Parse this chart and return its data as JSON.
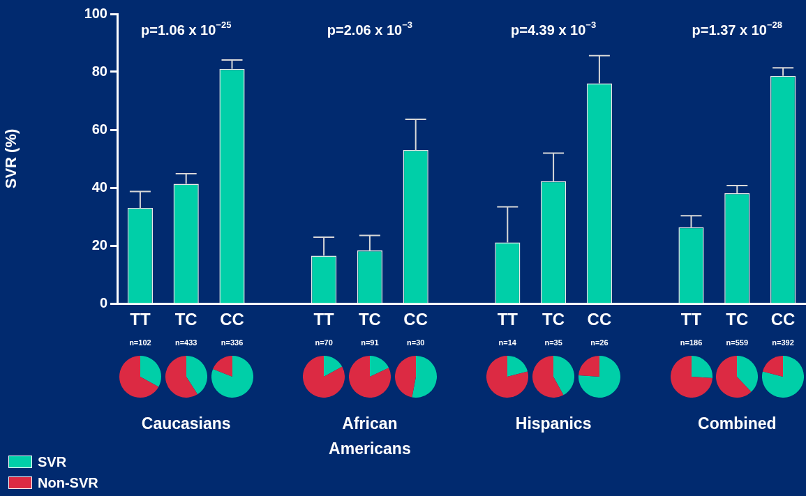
{
  "chart_data": [
    {
      "type": "bar",
      "ylabel": "SVR (%)",
      "categories": [
        "TT",
        "TC",
        "CC",
        null,
        "TT",
        "TC",
        "CC",
        null,
        "TT",
        "TC",
        "CC",
        null,
        "TT",
        "TC",
        "CC"
      ],
      "values": [
        33,
        41.3,
        81,
        null,
        16.5,
        18.3,
        53,
        null,
        21.1,
        42.2,
        76,
        null,
        26.3,
        38.1,
        78.6
      ],
      "errors": [
        [
          33,
          38.7
        ],
        [
          41.3,
          44.8
        ],
        [
          81,
          84.1
        ],
        null,
        [
          16.5,
          22.9
        ],
        [
          18.3,
          23.5
        ],
        [
          53,
          63.6
        ],
        null,
        [
          21.1,
          33.4
        ],
        [
          42.2,
          51.9
        ],
        [
          76,
          85.6
        ],
        null,
        [
          26.3,
          30.3
        ],
        [
          38.1,
          40.7
        ],
        [
          78.6,
          81.4
        ]
      ],
      "color": "#00cfa8",
      "ylim": [
        0,
        100
      ],
      "yticks": [
        0,
        20,
        40,
        60,
        80,
        100
      ],
      "grid": false,
      "annotations": [
        "p=1.06 x 10$^{−25}$",
        "p=2.06 x 10$^{−3}$",
        "p=4.39 x 10$^{−3}$",
        "p=1.37 x 10$^{−28}$",
        "n=102",
        "n=433",
        "n=336",
        "n=70",
        "n=91",
        "n=30",
        "n=14",
        "n=35",
        "n=26",
        "n=186",
        "n=559",
        "n=392",
        "Caucasians",
        "African Americans",
        "Hispanics",
        "Combined"
      ]
    },
    {
      "type": "pie",
      "categories": [
        "SVR",
        "Non-SVR"
      ],
      "values": [
        33,
        67
      ],
      "colors": [
        "#00cfa8",
        "#dc2a43"
      ],
      "legend": "bottom left"
    },
    {
      "type": "pie",
      "categories": [
        null,
        null
      ],
      "values": [
        41,
        59
      ],
      "colors": [
        "#00cfa8",
        "#dc2a43"
      ]
    },
    {
      "type": "pie",
      "categories": [
        null,
        null
      ],
      "values": [
        81,
        19
      ],
      "colors": [
        "#00cfa8",
        "#dc2a43"
      ]
    },
    {
      "type": "pie",
      "categories": [
        null,
        null
      ],
      "values": [
        17,
        83
      ],
      "colors": [
        "#00cfa8",
        "#dc2a43"
      ]
    },
    {
      "type": "pie",
      "categories": [
        null,
        null
      ],
      "values": [
        18,
        82
      ],
      "colors": [
        "#00cfa8",
        "#dc2a43"
      ]
    },
    {
      "type": "pie",
      "categories": [
        null,
        null
      ],
      "values": [
        53,
        47
      ],
      "colors": [
        "#00cfa8",
        "#dc2a43"
      ]
    },
    {
      "type": "pie",
      "categories": [
        null,
        null
      ],
      "values": [
        21,
        79
      ],
      "colors": [
        "#00cfa8",
        "#dc2a43"
      ]
    },
    {
      "type": "pie",
      "categories": [
        null,
        null
      ],
      "values": [
        42,
        58
      ],
      "colors": [
        "#00cfa8",
        "#dc2a43"
      ]
    },
    {
      "type": "pie",
      "categories": [
        null,
        null
      ],
      "values": [
        76,
        24
      ],
      "colors": [
        "#00cfa8",
        "#dc2a43"
      ]
    },
    {
      "type": "pie",
      "categories": [
        null,
        null
      ],
      "values": [
        26,
        74
      ],
      "colors": [
        "#00cfa8",
        "#dc2a43"
      ]
    },
    {
      "type": "pie",
      "categories": [
        null,
        null
      ],
      "values": [
        38,
        62
      ],
      "colors": [
        "#00cfa8",
        "#dc2a43"
      ]
    },
    {
      "type": "pie",
      "categories": [
        null,
        null
      ],
      "values": [
        79,
        21
      ],
      "colors": [
        "#00cfa8",
        "#dc2a43"
      ]
    }
  ]
}
